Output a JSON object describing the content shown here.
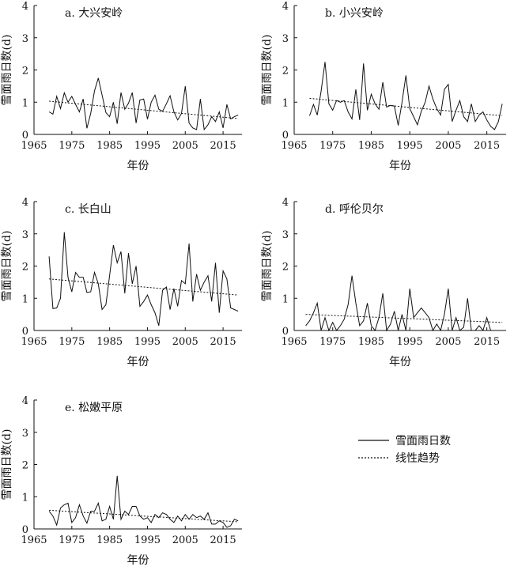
{
  "legend": {
    "observed": "雪面雨日数",
    "trend": "线性趋势"
  },
  "chart_data": [
    {
      "type": "line",
      "title": "a. 大兴安岭",
      "xlabel": "年份",
      "ylabel": "雪面雨日数(d)",
      "xlim": [
        1965,
        2020
      ],
      "ylim": [
        0,
        4
      ],
      "xticks": [
        "1965",
        "1975",
        "1985",
        "1995",
        "2005",
        "2015"
      ],
      "yticks": [
        "0",
        "1",
        "2",
        "3",
        "4"
      ],
      "series": [
        {
          "name": "雪面雨日数",
          "style": "solid",
          "x": [
            1969,
            1970,
            1971,
            1972,
            1973,
            1974,
            1975,
            1976,
            1977,
            1978,
            1979,
            1980,
            1981,
            1982,
            1983,
            1984,
            1985,
            1986,
            1987,
            1988,
            1989,
            1990,
            1991,
            1992,
            1993,
            1994,
            1995,
            1996,
            1997,
            1998,
            1999,
            2000,
            2001,
            2002,
            2003,
            2004,
            2005,
            2006,
            2007,
            2008,
            2009,
            2010,
            2011,
            2012,
            2013,
            2014,
            2015,
            2016,
            2017,
            2018,
            2019
          ],
          "values": [
            0.7,
            0.63,
            1.18,
            0.8,
            1.29,
            1.0,
            1.18,
            0.93,
            0.7,
            1.1,
            0.19,
            0.65,
            1.35,
            1.75,
            1.22,
            0.68,
            0.55,
            1.0,
            0.33,
            1.3,
            0.78,
            0.97,
            1.3,
            0.35,
            1.07,
            1.1,
            0.47,
            1.0,
            1.22,
            0.78,
            0.72,
            0.95,
            1.2,
            0.7,
            0.45,
            0.65,
            1.5,
            0.35,
            0.2,
            0.15,
            1.1,
            0.15,
            0.3,
            0.55,
            0.4,
            0.7,
            0.2,
            0.93,
            0.48,
            0.55,
            0.6
          ]
        },
        {
          "name": "线性趋势",
          "style": "dashed",
          "x": [
            1969,
            2019
          ],
          "values": [
            1.03,
            0.49
          ]
        }
      ]
    },
    {
      "type": "line",
      "title": "b. 小兴安岭",
      "xlabel": "年份",
      "ylabel": "雪面雨日数(d)",
      "xlim": [
        1965,
        2020
      ],
      "ylim": [
        0,
        4
      ],
      "xticks": [
        "1965",
        "1975",
        "1985",
        "1995",
        "2005",
        "2015"
      ],
      "yticks": [
        "0",
        "1",
        "2",
        "3",
        "4"
      ],
      "series": [
        {
          "name": "雪面雨日数",
          "style": "solid",
          "x": [
            1969,
            1970,
            1971,
            1972,
            1973,
            1974,
            1975,
            1976,
            1977,
            1978,
            1979,
            1980,
            1981,
            1982,
            1983,
            1984,
            1985,
            1986,
            1987,
            1988,
            1989,
            1990,
            1991,
            1992,
            1993,
            1994,
            1995,
            1996,
            1997,
            1998,
            1999,
            2000,
            2001,
            2002,
            2003,
            2004,
            2005,
            2006,
            2007,
            2008,
            2009,
            2010,
            2011,
            2012,
            2013,
            2014,
            2015,
            2016,
            2017,
            2018,
            2019
          ],
          "values": [
            0.58,
            0.93,
            0.6,
            1.35,
            2.25,
            0.95,
            0.75,
            1.05,
            1.0,
            1.05,
            0.7,
            0.48,
            1.4,
            0.45,
            2.2,
            0.75,
            1.25,
            0.95,
            0.78,
            1.62,
            0.85,
            0.9,
            0.88,
            0.28,
            1.0,
            1.83,
            0.8,
            0.55,
            0.3,
            0.72,
            1.0,
            1.5,
            1.1,
            0.8,
            0.6,
            1.4,
            1.55,
            0.4,
            0.75,
            1.05,
            0.55,
            0.4,
            0.95,
            0.4,
            0.6,
            0.7,
            0.45,
            0.25,
            0.15,
            0.4,
            0.95
          ]
        },
        {
          "name": "线性趋势",
          "style": "dashed",
          "x": [
            1969,
            2019
          ],
          "values": [
            1.12,
            0.58
          ]
        }
      ]
    },
    {
      "type": "line",
      "title": "c. 长白山",
      "xlabel": "年份",
      "ylabel": "雪面雨日数(d)",
      "xlim": [
        1965,
        2020
      ],
      "ylim": [
        0,
        4
      ],
      "xticks": [
        "1965",
        "1975",
        "1985",
        "1995",
        "2005",
        "2015"
      ],
      "yticks": [
        "0",
        "1",
        "2",
        "3",
        "4"
      ],
      "series": [
        {
          "name": "雪面雨日数",
          "style": "solid",
          "x": [
            1969,
            1970,
            1971,
            1972,
            1973,
            1974,
            1975,
            1976,
            1977,
            1978,
            1979,
            1980,
            1981,
            1982,
            1983,
            1984,
            1985,
            1986,
            1987,
            1988,
            1989,
            1990,
            1991,
            1992,
            1993,
            1994,
            1995,
            1996,
            1997,
            1998,
            1999,
            2000,
            2001,
            2002,
            2003,
            2004,
            2005,
            2006,
            2007,
            2008,
            2009,
            2010,
            2011,
            2012,
            2013,
            2014,
            2015,
            2016,
            2017,
            2018,
            2019
          ],
          "values": [
            2.3,
            0.68,
            0.7,
            1.0,
            3.05,
            1.65,
            1.2,
            1.8,
            1.65,
            1.65,
            1.18,
            1.2,
            1.8,
            1.45,
            0.65,
            0.8,
            1.7,
            2.65,
            2.1,
            2.45,
            1.15,
            2.4,
            1.45,
            2.0,
            0.75,
            0.9,
            1.1,
            0.8,
            0.55,
            0.15,
            1.25,
            1.35,
            0.65,
            1.3,
            0.75,
            1.55,
            1.45,
            2.7,
            0.9,
            1.75,
            1.25,
            1.5,
            1.7,
            0.9,
            2.1,
            0.55,
            1.85,
            1.6,
            0.7,
            0.65,
            0.6
          ]
        },
        {
          "name": "线性趋势",
          "style": "dashed",
          "x": [
            1969,
            2019
          ],
          "values": [
            1.6,
            1.1
          ]
        }
      ]
    },
    {
      "type": "line",
      "title": "d. 呼伦贝尔",
      "xlabel": "年份",
      "ylabel": "雪面雨日数(d)",
      "xlim": [
        1965,
        2020
      ],
      "ylim": [
        0,
        4
      ],
      "xticks": [
        "1965",
        "1975",
        "1985",
        "1995",
        "2005",
        "2015"
      ],
      "yticks": [
        "0",
        "1",
        "2",
        "3",
        "4"
      ],
      "series": [
        {
          "name": "雪面雨日数",
          "style": "solid",
          "x": [
            1968,
            1969,
            1970,
            1971,
            1972,
            1973,
            1974,
            1975,
            1976,
            1977,
            1978,
            1979,
            1980,
            1981,
            1982,
            1983,
            1984,
            1985,
            1986,
            1987,
            1988,
            1989,
            1990,
            1991,
            1992,
            1993,
            1994,
            1995,
            1996,
            1997,
            1998,
            1999,
            2000,
            2001,
            2002,
            2003,
            2004,
            2005,
            2006,
            2007,
            2008,
            2009,
            2010,
            2011,
            2012,
            2013,
            2014,
            2015,
            2016
          ],
          "values": [
            0.15,
            0.3,
            0.55,
            0.85,
            0.0,
            0.4,
            0.0,
            0.25,
            0.0,
            0.15,
            0.35,
            0.8,
            1.7,
            0.85,
            0.15,
            0.3,
            0.85,
            0.15,
            0.0,
            0.4,
            1.15,
            0.0,
            0.2,
            0.6,
            0.0,
            0.5,
            0.0,
            1.3,
            0.4,
            0.55,
            0.7,
            0.55,
            0.4,
            0.0,
            0.2,
            0.0,
            0.5,
            1.3,
            0.0,
            0.4,
            0.0,
            0.1,
            1.0,
            0.0,
            0.0,
            0.15,
            0.0,
            0.4,
            0.0
          ]
        },
        {
          "name": "线性趋势",
          "style": "dashed",
          "x": [
            1968,
            2019
          ],
          "values": [
            0.5,
            0.25
          ]
        }
      ]
    },
    {
      "type": "line",
      "title": "e. 松嫩平原",
      "xlabel": "年份",
      "ylabel": "雪面雨日数(d)",
      "xlim": [
        1965,
        2020
      ],
      "ylim": [
        0,
        4
      ],
      "xticks": [
        "1965",
        "1975",
        "1985",
        "1995",
        "2005",
        "2015"
      ],
      "yticks": [
        "0",
        "1",
        "2",
        "3",
        "4"
      ],
      "series": [
        {
          "name": "雪面雨日数",
          "style": "solid",
          "x": [
            1969,
            1970,
            1971,
            1972,
            1973,
            1974,
            1975,
            1976,
            1977,
            1978,
            1979,
            1980,
            1981,
            1982,
            1983,
            1984,
            1985,
            1986,
            1987,
            1988,
            1989,
            1990,
            1991,
            1992,
            1993,
            1994,
            1995,
            1996,
            1997,
            1998,
            1999,
            2000,
            2001,
            2002,
            2003,
            2004,
            2005,
            2006,
            2007,
            2008,
            2009,
            2010,
            2011,
            2012,
            2013,
            2014,
            2015,
            2016,
            2017,
            2018,
            2019
          ],
          "values": [
            0.55,
            0.4,
            0.12,
            0.65,
            0.75,
            0.8,
            0.2,
            0.35,
            0.75,
            0.4,
            0.18,
            0.55,
            0.55,
            0.8,
            0.25,
            0.3,
            0.7,
            0.3,
            1.65,
            0.3,
            0.55,
            0.45,
            0.7,
            0.7,
            0.4,
            0.3,
            0.35,
            0.2,
            0.45,
            0.35,
            0.5,
            0.45,
            0.3,
            0.2,
            0.4,
            0.25,
            0.45,
            0.3,
            0.45,
            0.35,
            0.4,
            0.3,
            0.5,
            0.15,
            0.15,
            0.25,
            0.2,
            0.05,
            0.1,
            0.3,
            0.25
          ]
        },
        {
          "name": "线性趋势",
          "style": "dashed",
          "x": [
            1969,
            2019
          ],
          "values": [
            0.58,
            0.22
          ]
        }
      ]
    }
  ]
}
